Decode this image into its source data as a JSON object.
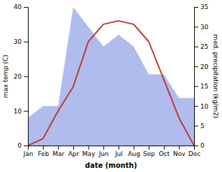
{
  "chart_data": {
    "type": "line",
    "x_label": "date (month)",
    "y_label": "max temp (C)",
    "y2_label": "med. precipitation (kg/m2)",
    "categories": [
      "Jan",
      "Feb",
      "Mar",
      "Apr",
      "May",
      "Jun",
      "Jul",
      "Aug",
      "Sep",
      "Oct",
      "Nov",
      "Dec"
    ],
    "series": [
      {
        "type": "area",
        "axis": "y2",
        "color": "#b0bcee",
        "values": [
          7,
          10,
          10,
          35,
          30,
          25,
          28,
          25,
          18,
          18,
          12,
          12
        ]
      },
      {
        "type": "line",
        "color": "#c0392b",
        "values": [
          0,
          2,
          10,
          17,
          30,
          35,
          36,
          35,
          30,
          19,
          8,
          0
        ]
      }
    ],
    "ylim": [
      0,
      40
    ],
    "yticks": [
      0,
      10,
      20,
      30,
      40
    ],
    "y2lim": [
      0,
      35
    ],
    "y2ticks": [
      0,
      5,
      10,
      15,
      20,
      25,
      30,
      35
    ],
    "grid": false
  }
}
